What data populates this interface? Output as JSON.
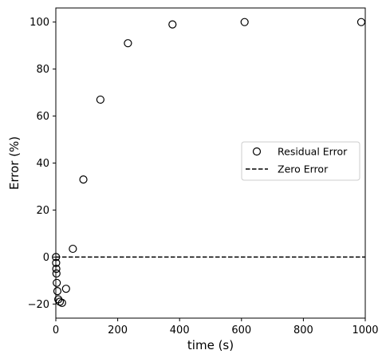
{
  "chart_data": {
    "type": "scatter",
    "xlabel": "time (s)",
    "ylabel": "Error (%)",
    "xlim": [
      0,
      1000
    ],
    "ylim": [
      -26,
      106
    ],
    "xticks": [
      0,
      200,
      400,
      600,
      800,
      1000
    ],
    "yticks": [
      -20,
      0,
      20,
      40,
      60,
      80,
      100
    ],
    "grid": false,
    "legend_position": "center-right",
    "series": [
      {
        "name": "Residual Error",
        "marker": "open-circle",
        "color": "#000000",
        "x": [
          0.5,
          1,
          1.5,
          2,
          3,
          5,
          8,
          13,
          20,
          33,
          55,
          89,
          144,
          233,
          377,
          610,
          987
        ],
        "y": [
          0,
          -2.5,
          -5,
          -7,
          -11,
          -14.5,
          -18,
          -19,
          -19.5,
          -13.5,
          3.5,
          33,
          67,
          91,
          99,
          100,
          100
        ]
      },
      {
        "name": "Zero Error",
        "style": "dashed",
        "color": "#000000",
        "x": [
          0,
          1000
        ],
        "y": [
          0,
          0
        ]
      }
    ]
  }
}
